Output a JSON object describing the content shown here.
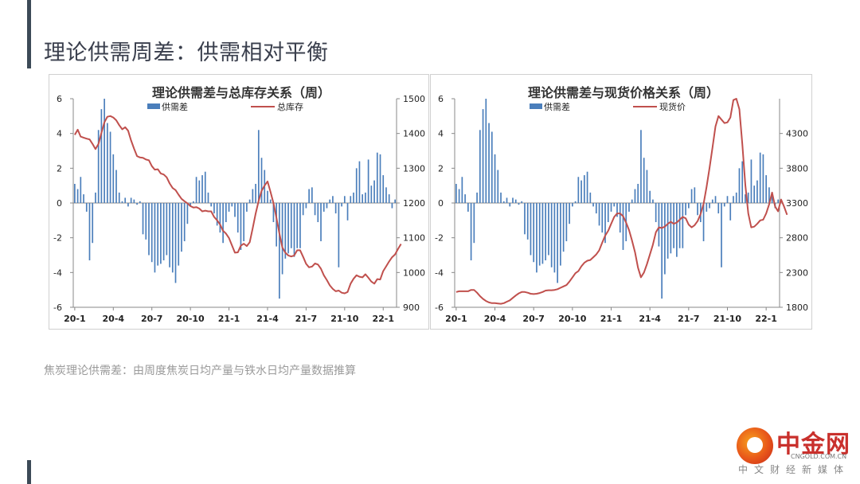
{
  "page": {
    "title": "理论供需周差：供需相对平衡",
    "footnote": "焦炭理论供需差：由周度焦炭日均产量与铁水日均产量数据推算"
  },
  "logo": {
    "name": "中金网",
    "url": "CNGOLD.COM.CN",
    "tagline": "中文财经新媒体"
  },
  "colors": {
    "bar": "#4a7ebb",
    "line": "#c0504d",
    "axis": "#888888",
    "title": "#333333"
  },
  "chart_data": [
    {
      "type": "bar+line",
      "title": "理论供需差与总库存关系（周）",
      "x_tick_labels": [
        "20-1",
        "20-4",
        "20-7",
        "20-10",
        "21-1",
        "21-4",
        "21-7",
        "21-10",
        "22-1"
      ],
      "x_tick_positions": [
        0,
        13,
        26,
        39,
        52,
        65,
        78,
        91,
        104
      ],
      "y_left": {
        "min": -6,
        "max": 6,
        "ticks": [
          -6,
          -4,
          -2,
          0,
          2,
          4,
          6
        ]
      },
      "y_right": {
        "min": 900,
        "max": 1500,
        "ticks": [
          900,
          1000,
          1100,
          1200,
          1300,
          1400,
          1500
        ]
      },
      "series": [
        {
          "name": "供需差",
          "kind": "bar",
          "axis": "left",
          "values": [
            1.1,
            0.8,
            1.5,
            0.5,
            -0.5,
            -3.3,
            -2.3,
            0.6,
            4.2,
            5.4,
            6.0,
            4.6,
            4.1,
            2.8,
            1.9,
            0.6,
            0.1,
            0.3,
            -0.2,
            0.3,
            0.2,
            -0.1,
            0.1,
            -1.8,
            -2.1,
            -3.0,
            -3.4,
            -4.0,
            -3.6,
            -3.5,
            -3.3,
            -3.0,
            -3.7,
            -4.0,
            -4.6,
            -3.6,
            -2.8,
            -2.2,
            -1.2,
            -0.2,
            0.1,
            1.5,
            1.3,
            1.6,
            1.8,
            0.6,
            -0.2,
            -0.6,
            -1.3,
            -1.7,
            -2.3,
            -1.1,
            -0.5,
            -0.2,
            -0.8,
            -1.7,
            -2.7,
            -2.2,
            -0.5,
            0.2,
            0.8,
            1.1,
            4.2,
            2.6,
            1.9,
            0.7,
            0.2,
            -1.1,
            -2.5,
            -5.5,
            -4.1,
            -3.2,
            -2.9,
            -2.6,
            -3.1,
            -2.6,
            -2.6,
            -0.7,
            -0.3,
            0.8,
            0.9,
            -0.7,
            -1.1,
            -2.2,
            -0.5,
            -0.3,
            0.2,
            0.4,
            -0.6,
            -3.7,
            -0.2,
            0.4,
            -1.0,
            0.4,
            0.6,
            2.0,
            2.4,
            0.5,
            0.6,
            2.5,
            1.0,
            1.3,
            2.9,
            2.8,
            1.6,
            0.9,
            0.5,
            -0.3,
            0.2
          ]
        },
        {
          "name": "总库存",
          "kind": "line",
          "axis": "right",
          "values": [
            1396,
            1411,
            1391,
            1388,
            1385,
            1383,
            1370,
            1355,
            1370,
            1402,
            1432,
            1448,
            1450,
            1446,
            1438,
            1424,
            1412,
            1418,
            1408,
            1380,
            1356,
            1335,
            1331,
            1330,
            1325,
            1323,
            1306,
            1296,
            1297,
            1285,
            1282,
            1274,
            1256,
            1243,
            1237,
            1224,
            1212,
            1205,
            1199,
            1191,
            1187,
            1188,
            1184,
            1176,
            1178,
            1176,
            1176,
            1160,
            1150,
            1138,
            1120,
            1112,
            1099,
            1078,
            1057,
            1058,
            1077,
            1083,
            1076,
            1087,
            1127,
            1170,
            1206,
            1235,
            1250,
            1262,
            1232,
            1200,
            1158,
            1112,
            1072,
            1057,
            1049,
            1046,
            1049,
            1064,
            1064,
            1045,
            1025,
            1015,
            1017,
            1026,
            1023,
            1011,
            992,
            978,
            963,
            953,
            946,
            948,
            942,
            940,
            944,
            968,
            982,
            992,
            988,
            986,
            995,
            985,
            974,
            968,
            981,
            980,
            1004,
            1018,
            1032,
            1044,
            1052,
            1068,
            1082
          ]
        }
      ],
      "legend": [
        "供需差",
        "总库存"
      ],
      "legend_position": "top"
    },
    {
      "type": "bar+line",
      "title": "理论供需差与现货价格关系（周）",
      "x_tick_labels": [
        "20-1",
        "20-4",
        "20-7",
        "20-10",
        "21-1",
        "21-4",
        "21-7",
        "21-10",
        "22-1"
      ],
      "x_tick_positions": [
        0,
        13,
        26,
        39,
        52,
        65,
        78,
        91,
        104
      ],
      "y_left": {
        "min": -6,
        "max": 6,
        "ticks": [
          -6,
          -4,
          -2,
          0,
          2,
          4,
          6
        ]
      },
      "y_right": {
        "min": 1800,
        "max": 4800,
        "ticks": [
          1800,
          2300,
          2800,
          3300,
          3800,
          4300
        ]
      },
      "series": [
        {
          "name": "供需差",
          "kind": "bar",
          "axis": "left",
          "values": [
            1.1,
            0.8,
            1.5,
            0.5,
            -0.5,
            -3.3,
            -2.3,
            0.6,
            4.2,
            5.4,
            6.0,
            4.6,
            4.1,
            2.8,
            1.9,
            0.6,
            0.1,
            0.3,
            -0.2,
            0.3,
            0.2,
            -0.1,
            0.1,
            -1.8,
            -2.1,
            -3.0,
            -3.4,
            -4.0,
            -3.6,
            -3.5,
            -3.3,
            -3.0,
            -3.7,
            -4.0,
            -4.6,
            -3.6,
            -2.8,
            -2.2,
            -1.2,
            -0.2,
            0.1,
            1.5,
            1.3,
            1.6,
            1.8,
            0.6,
            -0.2,
            -0.6,
            -1.3,
            -1.7,
            -2.3,
            -1.1,
            -0.5,
            -0.2,
            -0.8,
            -1.7,
            -2.7,
            -2.2,
            -0.5,
            0.2,
            0.8,
            1.1,
            4.2,
            2.6,
            1.9,
            0.7,
            0.2,
            -1.1,
            -2.5,
            -5.5,
            -4.1,
            -3.2,
            -2.9,
            -2.6,
            -3.1,
            -2.6,
            -2.6,
            -0.7,
            -0.3,
            0.8,
            0.9,
            -0.7,
            -1.1,
            -2.2,
            -0.5,
            -0.3,
            0.2,
            0.4,
            -0.6,
            -3.7,
            -0.2,
            0.4,
            -1.0,
            0.4,
            0.6,
            2.0,
            2.4,
            0.5,
            0.6,
            2.5,
            1.0,
            1.3,
            2.9,
            2.8,
            1.6,
            0.9,
            0.5,
            -0.3,
            0.2
          ]
        },
        {
          "name": "现货价",
          "kind": "line",
          "axis": "right",
          "values": [
            2020,
            2030,
            2030,
            2030,
            2030,
            2050,
            2050,
            2010,
            1960,
            1920,
            1890,
            1870,
            1860,
            1860,
            1855,
            1850,
            1860,
            1880,
            1900,
            1935,
            1970,
            2000,
            2020,
            2020,
            2010,
            1995,
            1990,
            1995,
            2005,
            2020,
            2040,
            2045,
            2045,
            2050,
            2060,
            2080,
            2100,
            2120,
            2170,
            2230,
            2290,
            2320,
            2390,
            2440,
            2470,
            2480,
            2520,
            2560,
            2620,
            2730,
            2830,
            2900,
            3000,
            3100,
            3150,
            3150,
            3110,
            3020,
            2910,
            2760,
            2590,
            2370,
            2230,
            2300,
            2420,
            2560,
            2700,
            2880,
            2950,
            2940,
            2960,
            3000,
            3030,
            3000,
            3020,
            3060,
            3100,
            3080,
            2990,
            2950,
            2980,
            3040,
            3140,
            3290,
            3530,
            3800,
            4100,
            4400,
            4550,
            4500,
            4450,
            4460,
            4530,
            4780,
            4800,
            4650,
            4150,
            3560,
            3150,
            2950,
            2960,
            3000,
            3050,
            3060,
            3150,
            3280,
            3450,
            3250,
            3180,
            3350,
            3250,
            3130
          ]
        }
      ],
      "legend": [
        "供需差",
        "现货价"
      ],
      "legend_position": "top"
    }
  ]
}
